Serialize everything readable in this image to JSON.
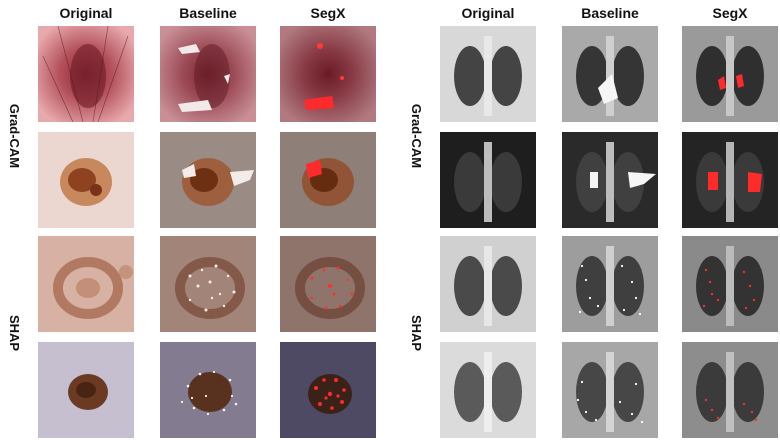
{
  "figure": {
    "panels": [
      {
        "id": "dermoscopy",
        "columns": [
          "Original",
          "Baseline",
          "SegX"
        ],
        "row_groups": [
          "Grad-CAM",
          "SHAP"
        ]
      },
      {
        "id": "chest-xray",
        "columns": [
          "Original",
          "Baseline",
          "SegX"
        ],
        "row_groups": [
          "Grad-CAM",
          "SHAP"
        ]
      }
    ]
  }
}
